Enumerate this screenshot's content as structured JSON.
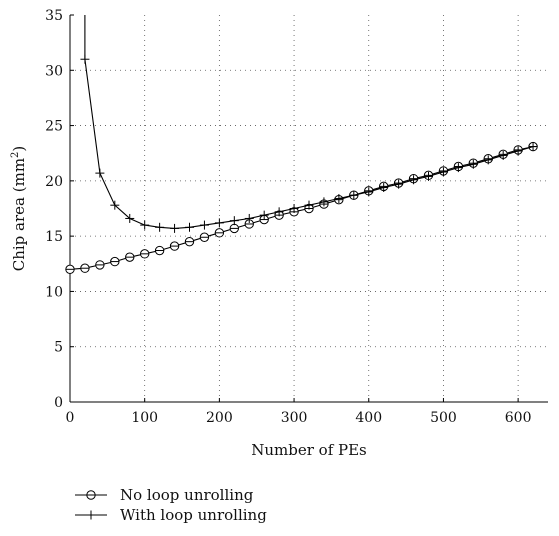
{
  "chart_data": {
    "type": "line",
    "title": "",
    "xlabel": "Number of PEs",
    "ylabel": "Chip area (mm",
    "ylabel_sup": "2",
    "ylabel_close": ")",
    "xlim": [
      0,
      640
    ],
    "ylim": [
      0,
      35
    ],
    "xticks": [
      0,
      100,
      200,
      300,
      400,
      500,
      600
    ],
    "yticks": [
      0,
      5,
      10,
      15,
      20,
      25,
      30,
      35
    ],
    "grid": "dotted",
    "legend_position": "below",
    "series": [
      {
        "name": "No loop unrolling",
        "marker": "circle",
        "x": [
          0,
          20,
          40,
          60,
          80,
          100,
          120,
          140,
          160,
          180,
          200,
          220,
          240,
          260,
          280,
          300,
          320,
          340,
          360,
          380,
          400,
          420,
          440,
          460,
          480,
          500,
          520,
          540,
          560,
          580,
          600,
          620
        ],
        "y": [
          12.0,
          12.1,
          12.4,
          12.7,
          13.1,
          13.4,
          13.7,
          14.1,
          14.5,
          14.9,
          15.3,
          15.7,
          16.1,
          16.5,
          16.9,
          17.2,
          17.5,
          17.9,
          18.3,
          18.7,
          19.1,
          19.5,
          19.8,
          20.2,
          20.5,
          20.9,
          21.3,
          21.6,
          22.0,
          22.4,
          22.8,
          23.1
        ]
      },
      {
        "name": "With loop unrolling",
        "marker": "plus",
        "x": [
          20,
          40,
          60,
          80,
          100,
          120,
          140,
          160,
          180,
          200,
          220,
          240,
          260,
          280,
          300,
          320,
          340,
          360,
          380,
          400,
          420,
          440,
          460,
          480,
          500,
          520,
          540,
          560,
          580,
          600,
          620
        ],
        "y": [
          31.0,
          20.7,
          17.8,
          16.6,
          16.0,
          15.8,
          15.7,
          15.8,
          16.0,
          16.2,
          16.4,
          16.6,
          16.9,
          17.2,
          17.5,
          17.8,
          18.1,
          18.4,
          18.7,
          19.0,
          19.4,
          19.7,
          20.1,
          20.4,
          20.8,
          21.2,
          21.5,
          21.9,
          22.3,
          22.7,
          23.1
        ],
        "steep_start": {
          "x": 20,
          "y": 35
        }
      }
    ]
  }
}
